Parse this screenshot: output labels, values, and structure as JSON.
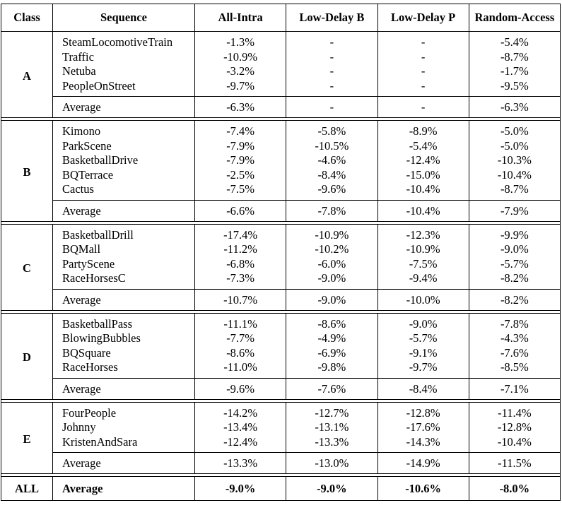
{
  "headers": {
    "class": "Class",
    "sequence": "Sequence",
    "all_intra": "All-Intra",
    "low_delay_b": "Low-Delay B",
    "low_delay_p": "Low-Delay P",
    "random_access": "Random-Access"
  },
  "groups": [
    {
      "class": "A",
      "rows": [
        {
          "seq": "SteamLocomotiveTrain",
          "ai": "-1.3%",
          "ldb": "-",
          "ldp": "-",
          "ra": "-5.4%"
        },
        {
          "seq": "Traffic",
          "ai": "-10.9%",
          "ldb": "-",
          "ldp": "-",
          "ra": "-8.7%"
        },
        {
          "seq": "Netuba",
          "ai": "-3.2%",
          "ldb": "-",
          "ldp": "-",
          "ra": "-1.7%"
        },
        {
          "seq": "PeopleOnStreet",
          "ai": "-9.7%",
          "ldb": "-",
          "ldp": "-",
          "ra": "-9.5%"
        }
      ],
      "average": {
        "label": "Average",
        "ai": "-6.3%",
        "ldb": "-",
        "ldp": "-",
        "ra": "-6.3%"
      }
    },
    {
      "class": "B",
      "rows": [
        {
          "seq": "Kimono",
          "ai": "-7.4%",
          "ldb": "-5.8%",
          "ldp": "-8.9%",
          "ra": "-5.0%"
        },
        {
          "seq": "ParkScene",
          "ai": "-7.9%",
          "ldb": "-10.5%",
          "ldp": "-5.4%",
          "ra": "-5.0%"
        },
        {
          "seq": "BasketballDrive",
          "ai": "-7.9%",
          "ldb": "-4.6%",
          "ldp": "-12.4%",
          "ra": "-10.3%"
        },
        {
          "seq": "BQTerrace",
          "ai": "-2.5%",
          "ldb": "-8.4%",
          "ldp": "-15.0%",
          "ra": "-10.4%"
        },
        {
          "seq": "Cactus",
          "ai": "-7.5%",
          "ldb": "-9.6%",
          "ldp": "-10.4%",
          "ra": "-8.7%"
        }
      ],
      "average": {
        "label": "Average",
        "ai": "-6.6%",
        "ldb": "-7.8%",
        "ldp": "-10.4%",
        "ra": "-7.9%"
      }
    },
    {
      "class": "C",
      "rows": [
        {
          "seq": "BasketballDrill",
          "ai": "-17.4%",
          "ldb": "-10.9%",
          "ldp": "-12.3%",
          "ra": "-9.9%"
        },
        {
          "seq": "BQMall",
          "ai": "-11.2%",
          "ldb": "-10.2%",
          "ldp": "-10.9%",
          "ra": "-9.0%"
        },
        {
          "seq": "PartyScene",
          "ai": "-6.8%",
          "ldb": "-6.0%",
          "ldp": "-7.5%",
          "ra": "-5.7%"
        },
        {
          "seq": "RaceHorsesC",
          "ai": "-7.3%",
          "ldb": "-9.0%",
          "ldp": "-9.4%",
          "ra": "-8.2%"
        }
      ],
      "average": {
        "label": "Average",
        "ai": "-10.7%",
        "ldb": "-9.0%",
        "ldp": "-10.0%",
        "ra": "-8.2%"
      }
    },
    {
      "class": "D",
      "rows": [
        {
          "seq": "BasketballPass",
          "ai": "-11.1%",
          "ldb": "-8.6%",
          "ldp": "-9.0%",
          "ra": "-7.8%"
        },
        {
          "seq": "BlowingBubbles",
          "ai": "-7.7%",
          "ldb": "-4.9%",
          "ldp": "-5.7%",
          "ra": "-4.3%"
        },
        {
          "seq": "BQSquare",
          "ai": "-8.6%",
          "ldb": "-6.9%",
          "ldp": "-9.1%",
          "ra": "-7.6%"
        },
        {
          "seq": "RaceHorses",
          "ai": "-11.0%",
          "ldb": "-9.8%",
          "ldp": "-9.7%",
          "ra": "-8.5%"
        }
      ],
      "average": {
        "label": "Average",
        "ai": "-9.6%",
        "ldb": "-7.6%",
        "ldp": "-8.4%",
        "ra": "-7.1%"
      }
    },
    {
      "class": "E",
      "rows": [
        {
          "seq": "FourPeople",
          "ai": "-14.2%",
          "ldb": "-12.7%",
          "ldp": "-12.8%",
          "ra": "-11.4%"
        },
        {
          "seq": "Johnny",
          "ai": "-13.4%",
          "ldb": "-13.1%",
          "ldp": "-17.6%",
          "ra": "-12.8%"
        },
        {
          "seq": "KristenAndSara",
          "ai": "-12.4%",
          "ldb": "-13.3%",
          "ldp": "-14.3%",
          "ra": "-10.4%"
        }
      ],
      "average": {
        "label": "Average",
        "ai": "-13.3%",
        "ldb": "-13.0%",
        "ldp": "-14.9%",
        "ra": "-11.5%"
      }
    }
  ],
  "overall": {
    "class": "ALL",
    "label": "Average",
    "ai": "-9.0%",
    "ldb": "-9.0%",
    "ldp": "-10.6%",
    "ra": "-8.0%"
  }
}
